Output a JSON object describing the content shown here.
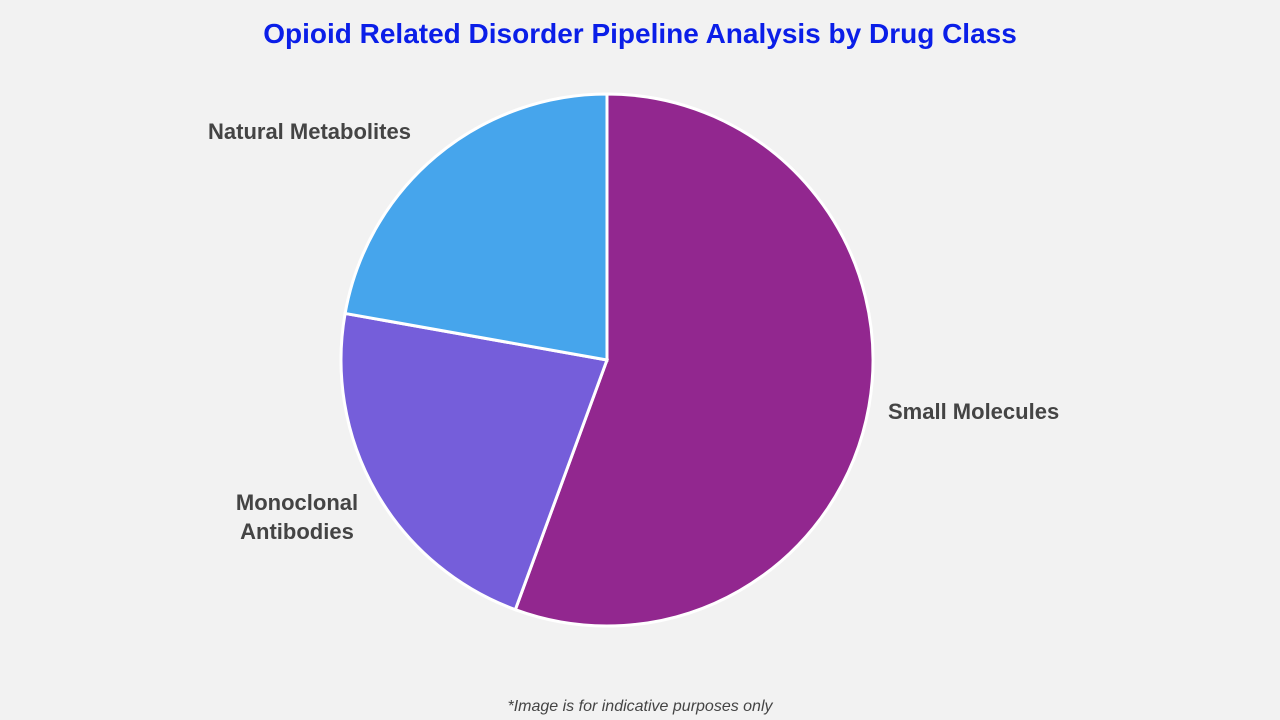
{
  "chart_data": {
    "type": "pie",
    "title": "Opioid Related Disorder Pipeline Analysis by Drug Class",
    "slices": [
      {
        "label": "Small Molecules",
        "value": 55.6,
        "color": "#92278f"
      },
      {
        "label": "Monoclonal Antibodies",
        "value": 22.2,
        "color": "#755eda"
      },
      {
        "label": "Natural Metabolites",
        "value": 22.2,
        "color": "#46a5ec"
      }
    ],
    "start_angle": "12 o'clock",
    "direction": "clockwise",
    "legend": "none"
  },
  "footnote": "*Image is for indicative purposes only"
}
